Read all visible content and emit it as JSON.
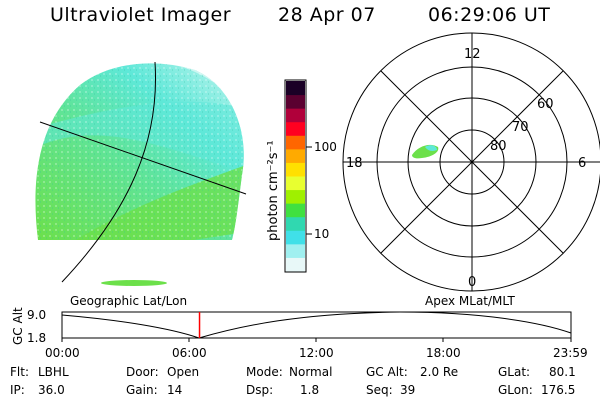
{
  "header": {
    "title": "Ultraviolet Imager",
    "date": "28 Apr 07",
    "time": "06:29:06 UT"
  },
  "panels": {
    "left_label": "Geographic Lat/Lon",
    "right_label": "Apex MLat/MLT"
  },
  "colorbar": {
    "unit_label": "photon cm⁻²s⁻¹",
    "ticks": [
      "100",
      "10"
    ],
    "colors": [
      "#1a0026",
      "#5a0030",
      "#b0003a",
      "#ff0020",
      "#ff6600",
      "#ffaa00",
      "#ffe000",
      "#e8ff30",
      "#9ff000",
      "#40e040",
      "#30d8b0",
      "#40e0e8",
      "#a0f0f0",
      "#e8f8f8"
    ]
  },
  "polar": {
    "mlt_labels": [
      "12",
      "18",
      "6",
      "0"
    ],
    "lat_labels": [
      "60",
      "70",
      "80"
    ]
  },
  "timeline": {
    "ylabel": "GC Alt",
    "y_ticks": [
      "9.0",
      "1.8"
    ],
    "x_ticks": [
      "00:00",
      "06:00",
      "12:00",
      "18:00",
      "23:59"
    ],
    "current_time_fraction": 0.2702
  },
  "status": {
    "flt_label": "Flt:",
    "flt_value": "LBHL",
    "ip_label": "IP:",
    "ip_value": "36.0",
    "door_label": "Door:",
    "door_value": "Open",
    "gain_label": "Gain:",
    "gain_value": "14",
    "mode_label": "Mode:",
    "mode_value": "Normal",
    "dsp_label": "Dsp:",
    "dsp_value": "1.8",
    "gcalt_label": "GC Alt:",
    "gcalt_value": "2.0 Re",
    "seq_label": "Seq:",
    "seq_value": "39",
    "glat_label": "GLat:",
    "glat_value": "80.1",
    "glon_label": "GLon:",
    "glon_value": "176.5"
  },
  "colors": {
    "image_green": "#6ce04a",
    "image_cyan": "#5ee8d8",
    "image_pale": "#bff3ee",
    "marker": "#ff0000"
  }
}
